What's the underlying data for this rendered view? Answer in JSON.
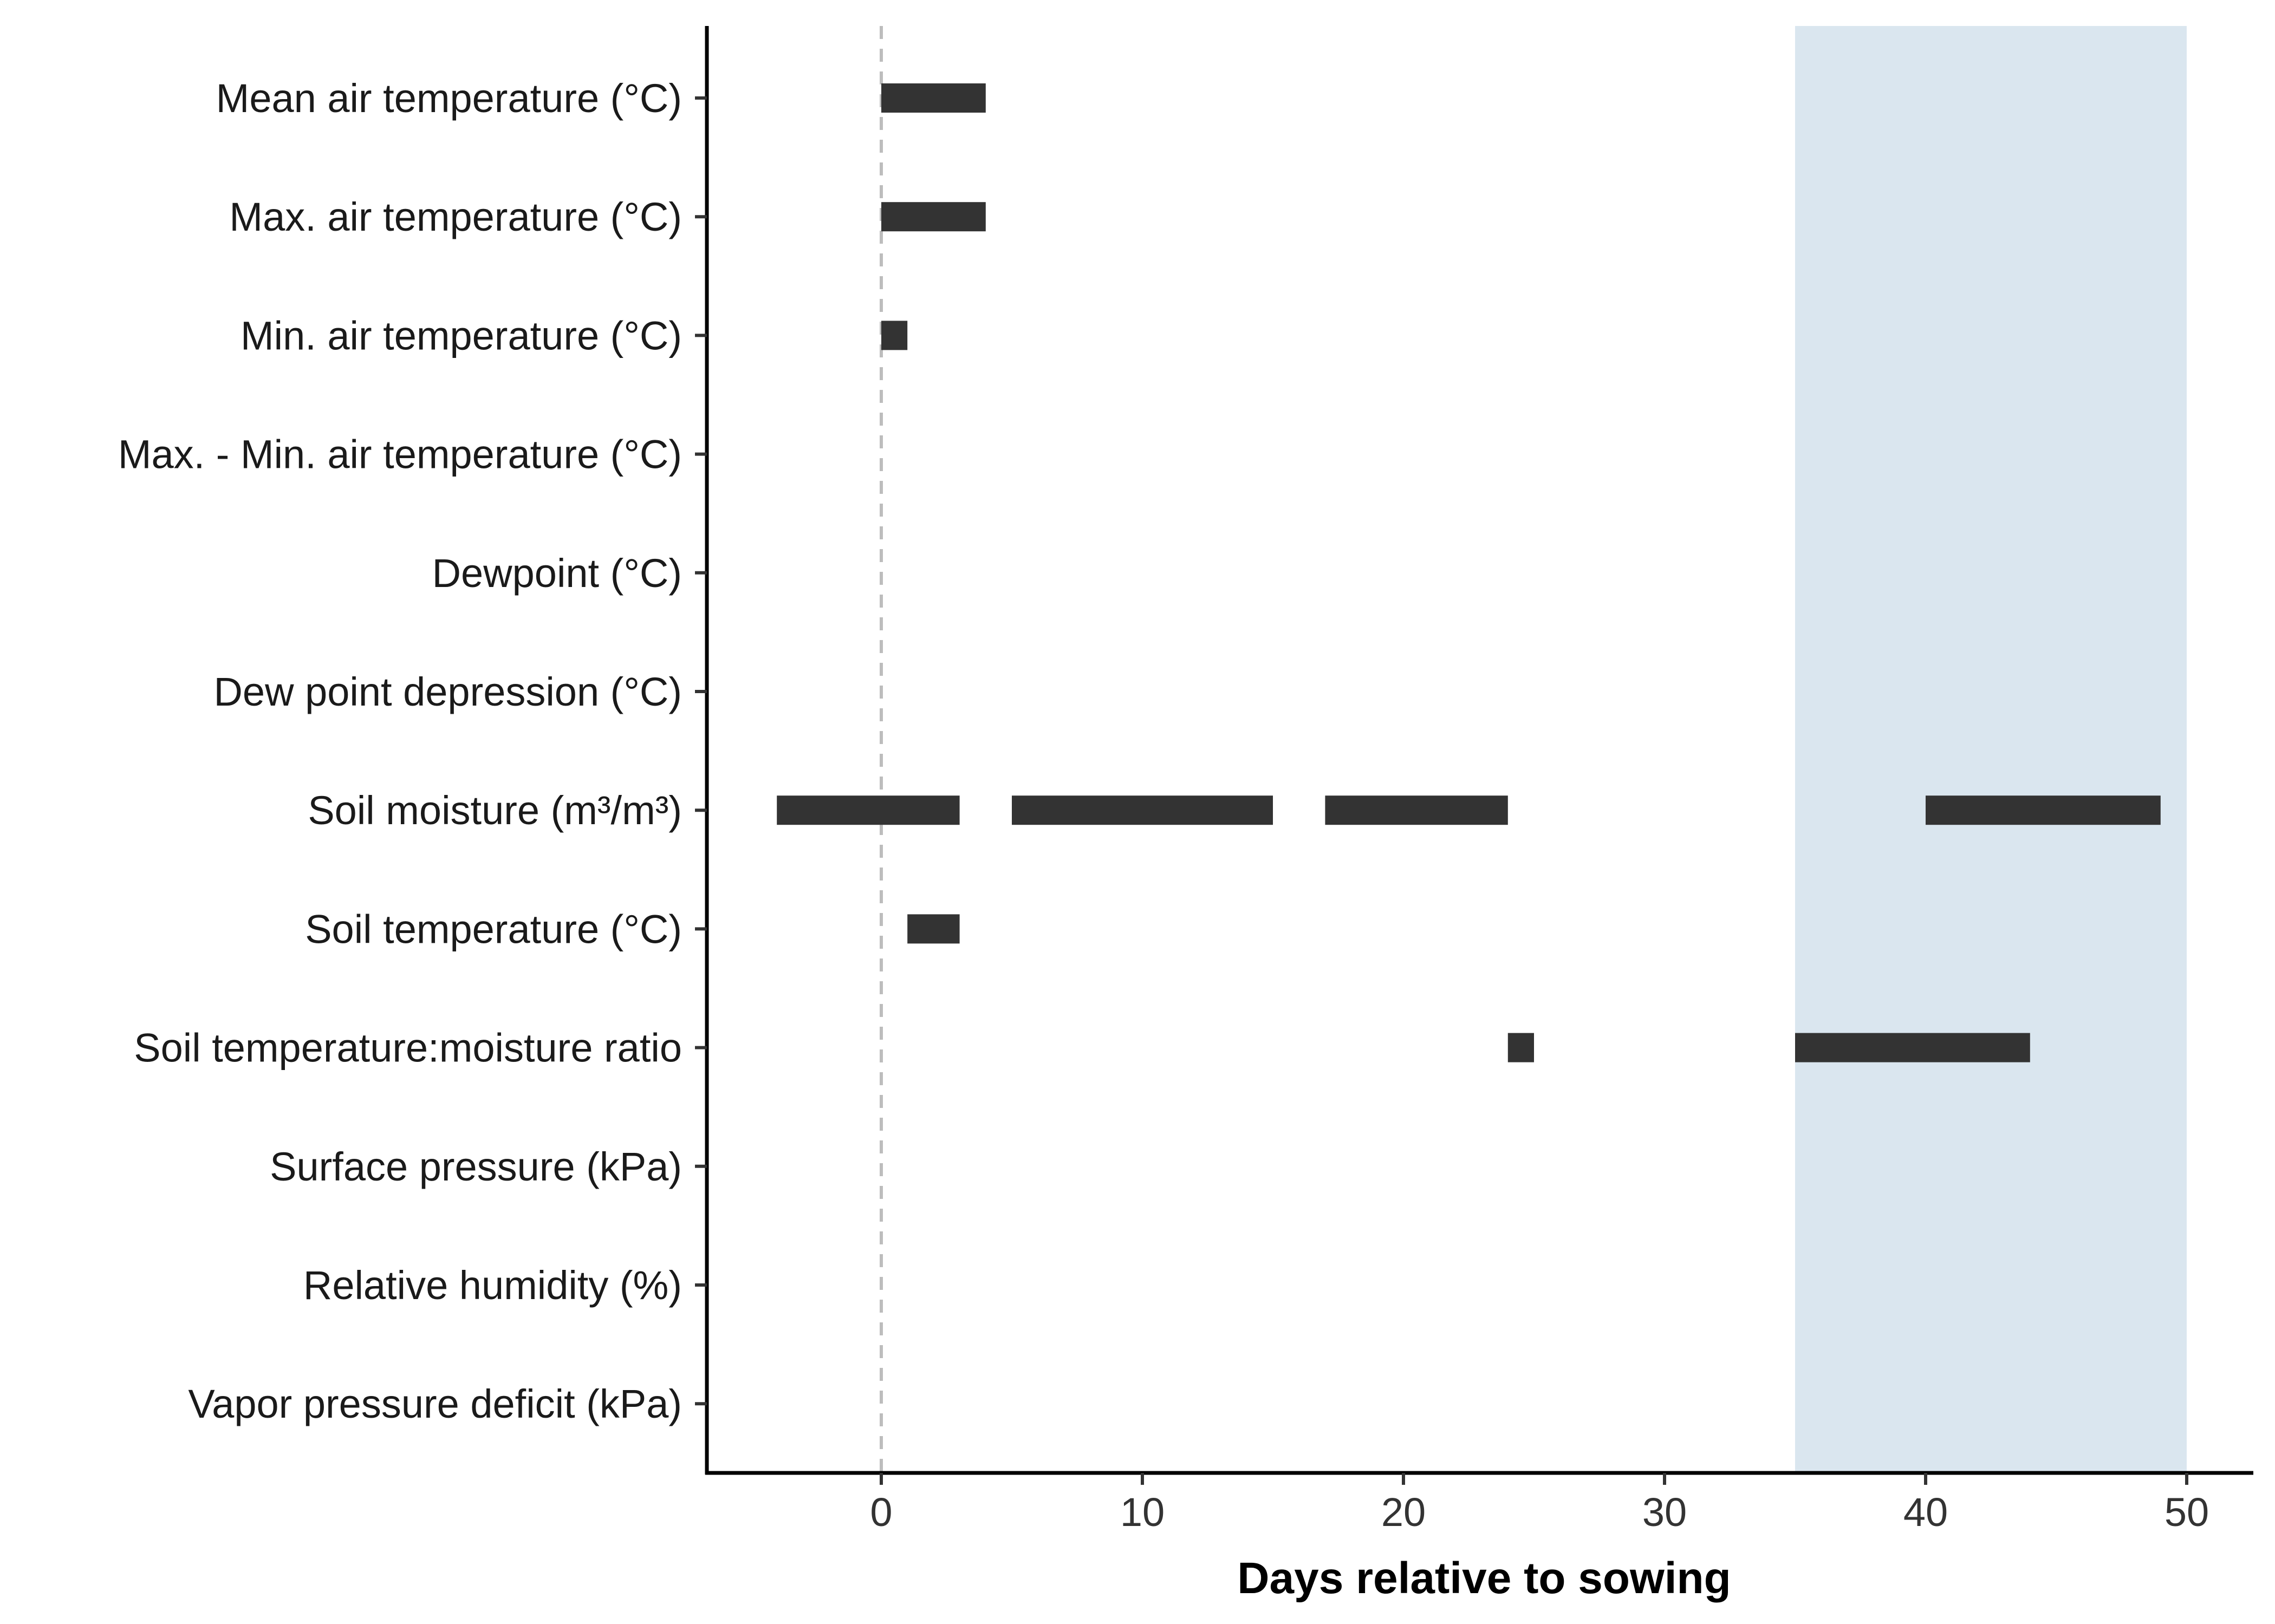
{
  "chart_data": {
    "type": "bar",
    "orientation": "horizontal-intervals",
    "title": "",
    "xlabel": "Days relative to sowing",
    "ylabel": "",
    "xlim": [
      -6.7,
      53.5
    ],
    "xticks": [
      0,
      10,
      20,
      30,
      40,
      50
    ],
    "grid": false,
    "legend": "none",
    "reference_line": {
      "x": 0,
      "style": "dashed",
      "color": "#bdbdbd"
    },
    "shaded_region": {
      "x_start": 35,
      "x_end": 50,
      "color": "#dae6ef"
    },
    "bar_color": "#333333",
    "categories": [
      "Mean air temperature (°C)",
      "Max. air temperature (°C)",
      "Min. air temperature (°C)",
      "Max. - Min. air temperature (°C)",
      "Dewpoint (°C)",
      "Dew point depression (°C)",
      "Soil moisture (m³/m³)",
      "Soil temperature (°C)",
      "Soil temperature:moisture ratio",
      "Surface pressure (kPa)",
      "Relative humidity (%)",
      "Vapor pressure deficit (kPa)"
    ],
    "intervals": [
      [
        [
          0,
          4
        ]
      ],
      [
        [
          0,
          4
        ]
      ],
      [
        [
          0,
          1
        ]
      ],
      [],
      [],
      [],
      [
        [
          -4,
          3
        ],
        [
          5,
          15
        ],
        [
          17,
          24
        ],
        [
          40,
          49
        ]
      ],
      [
        [
          1,
          3
        ]
      ],
      [
        [
          24,
          25
        ],
        [
          35,
          44
        ]
      ],
      [],
      [],
      []
    ]
  }
}
